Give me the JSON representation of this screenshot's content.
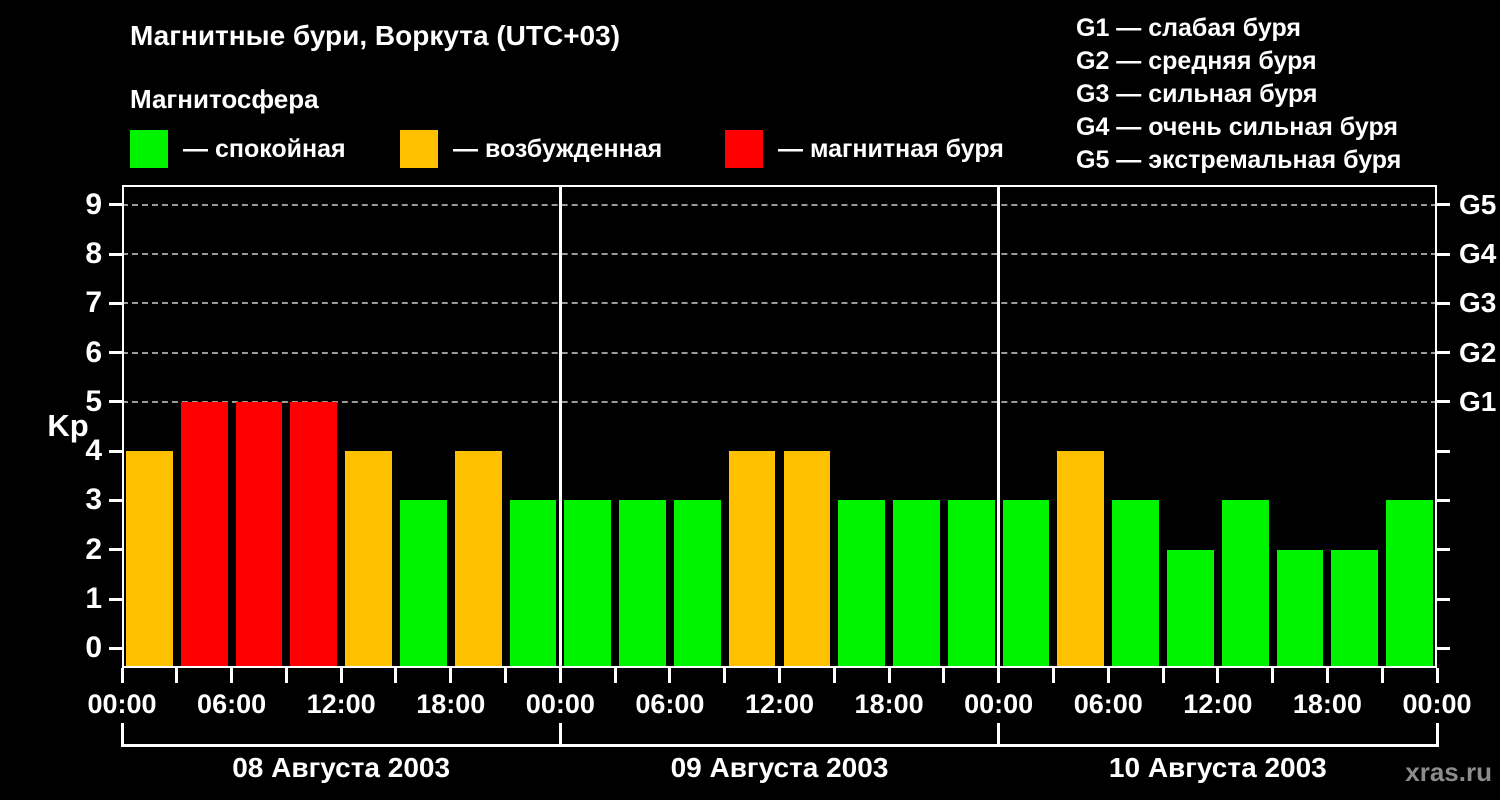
{
  "page": {
    "background": "#000000",
    "watermark": "xras.ru"
  },
  "header": {
    "title": "Магнитные бури, Воркута (UTC+03)",
    "subtitle": "Магнитосфера",
    "legend": [
      {
        "state": "quiet",
        "color": "#00f400",
        "label": "— спокойная"
      },
      {
        "state": "disturbed",
        "color": "#ffc000",
        "label": "— возбужденная"
      },
      {
        "state": "storm",
        "color": "#ff0000",
        "label": "— магнитная буря"
      }
    ],
    "storm_scale_legend": [
      "G1 — слабая буря",
      "G2 — средняя буря",
      "G3 — сильная буря",
      "G4 — очень сильная буря",
      "G5 — экстремальная буря"
    ]
  },
  "chart_data": {
    "type": "bar",
    "title": "Магнитные бури, Воркута (UTC+03)",
    "ylabel": "Kp",
    "xlabel": "",
    "ylim": [
      0,
      9
    ],
    "y_ticks": [
      0,
      1,
      2,
      3,
      4,
      5,
      6,
      7,
      8,
      9
    ],
    "gridlines_at": [
      5,
      6,
      7,
      8,
      9
    ],
    "grid_style": "dashed-horizontal",
    "right_axis_labels": [
      {
        "label": "G1",
        "kp": 5
      },
      {
        "label": "G2",
        "kp": 6
      },
      {
        "label": "G3",
        "kp": 7
      },
      {
        "label": "G4",
        "kp": 8
      },
      {
        "label": "G5",
        "kp": 9
      }
    ],
    "bin_hours": 3,
    "day_span_hours": 24,
    "total_hours": 72,
    "x_tick_hours": [
      0,
      6,
      12,
      18,
      24,
      30,
      36,
      42,
      48,
      54,
      60,
      66,
      72
    ],
    "x_tick_labels": [
      "00:00",
      "06:00",
      "12:00",
      "18:00",
      "00:00",
      "06:00",
      "12:00",
      "18:00",
      "00:00",
      "06:00",
      "12:00",
      "18:00",
      "00:00"
    ],
    "x_minor_tick_step_hours": 3,
    "state_colors": {
      "quiet": "#00f400",
      "disturbed": "#ffc000",
      "storm": "#ff0000"
    },
    "days": [
      {
        "label": "08 Августа 2003",
        "kp": [
          4,
          5,
          5,
          5,
          4,
          3,
          4,
          3
        ],
        "states": [
          "disturbed",
          "storm",
          "storm",
          "storm",
          "disturbed",
          "quiet",
          "disturbed",
          "quiet"
        ]
      },
      {
        "label": "09 Августа 2003",
        "kp": [
          3,
          3,
          3,
          4,
          4,
          3,
          3,
          3
        ],
        "states": [
          "quiet",
          "quiet",
          "quiet",
          "disturbed",
          "disturbed",
          "quiet",
          "quiet",
          "quiet"
        ]
      },
      {
        "label": "10 Августа 2003",
        "kp": [
          3,
          4,
          3,
          2,
          3,
          2,
          2,
          3
        ],
        "states": [
          "quiet",
          "disturbed",
          "quiet",
          "quiet",
          "quiet",
          "quiet",
          "quiet",
          "quiet"
        ]
      }
    ]
  }
}
